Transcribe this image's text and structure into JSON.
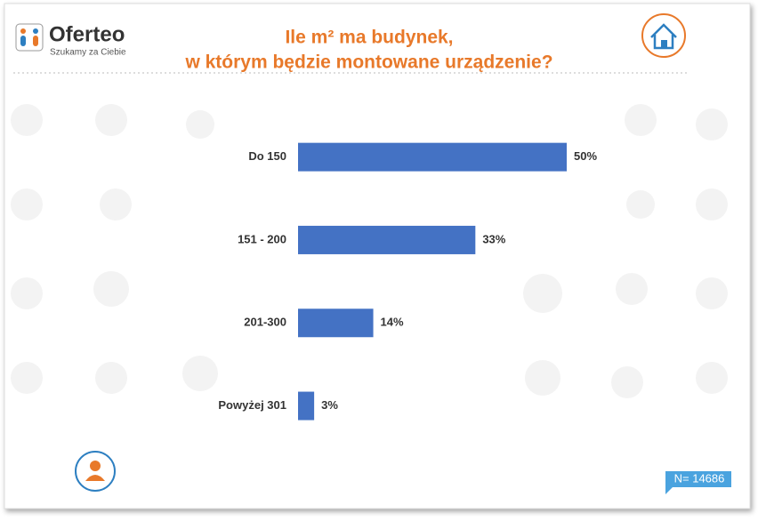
{
  "header": {
    "logo": "Oferteo",
    "slogan": "Szukamy za Ciebie"
  },
  "chart_data": {
    "type": "bar",
    "orientation": "horizontal",
    "title": [
      "Ile m² ma budynek,",
      "w którym będzie montowane urządzenie?"
    ],
    "categories": [
      "Do 150",
      "151 - 200",
      "201-300",
      "Powyżej 301"
    ],
    "values": [
      50,
      33,
      14,
      3
    ],
    "value_labels": [
      "50%",
      "33%",
      "14%",
      "3%"
    ],
    "color": "#4472c4"
  },
  "footer": {
    "sample": "N= 14686"
  }
}
